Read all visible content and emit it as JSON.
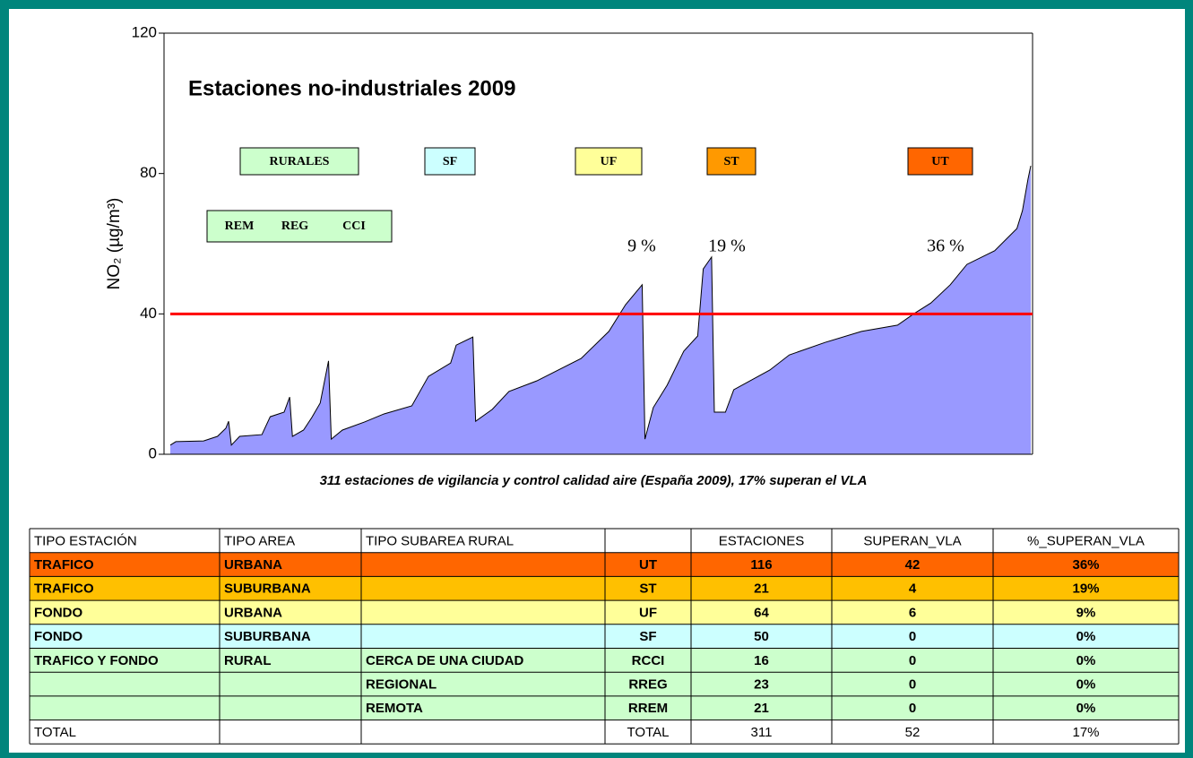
{
  "chart_data": {
    "type": "area",
    "title": "Estaciones no-industriales 2009",
    "y_label": "NO₂ (µg/m³)",
    "caption": "311 estaciones de vigilancia y control calidad aire (España 2009), 17% superan el VLA",
    "x": [
      1,
      3,
      13,
      18,
      21,
      22,
      23,
      26,
      34,
      37,
      42,
      44,
      45,
      49,
      52,
      55,
      58,
      59,
      63,
      71,
      78,
      88,
      94,
      102,
      104,
      110,
      111,
      117,
      123,
      133,
      149,
      159,
      165,
      171,
      172,
      175,
      180,
      186,
      191,
      193,
      196,
      197,
      201,
      204,
      217,
      224,
      237,
      250,
      263,
      269,
      275,
      282,
      288,
      298,
      306,
      308,
      310,
      311
    ],
    "values": [
      2.6,
      3.6,
      3.8,
      5.1,
      7.4,
      9.4,
      2.6,
      5.1,
      5.6,
      10.7,
      12.0,
      16.3,
      5.1,
      6.9,
      10.5,
      14.6,
      26.6,
      4.3,
      6.9,
      9.2,
      11.5,
      13.8,
      22.2,
      26.0,
      31.1,
      33.4,
      9.4,
      12.8,
      17.9,
      20.9,
      27.3,
      35.0,
      42.6,
      48.3,
      4.3,
      13.3,
      19.7,
      29.4,
      33.7,
      52.8,
      56.2,
      12.0,
      12.0,
      18.4,
      24.0,
      28.3,
      31.9,
      35.0,
      36.8,
      40.1,
      43.1,
      48.3,
      54.1,
      58.0,
      64.3,
      69.4,
      78.4,
      82.2
    ],
    "color": "#9999ff",
    "xlim": [
      1,
      311
    ],
    "ylim": [
      0,
      120
    ],
    "yticks": [
      0,
      40,
      80,
      120
    ],
    "threshold": 40,
    "threshold_color": "#ff0000",
    "boxes": [
      {
        "text": "RURALES",
        "color": "#ccffcc"
      },
      {
        "text": "SF",
        "color": "#ccffff"
      },
      {
        "text": "UF",
        "color": "#ffff99"
      },
      {
        "text": "ST",
        "color": "#ff9900"
      },
      {
        "text": "UT",
        "color": "#ff6600"
      }
    ],
    "rural_box": {
      "items": [
        "REM",
        "REG",
        "CCI"
      ],
      "color": "#ccffcc"
    },
    "annotations": [
      "9 %",
      "19 %",
      "36 %"
    ]
  },
  "table": {
    "header": [
      "TIPO ESTACIÓN",
      "TIPO AREA",
      "TIPO SUBAREA RURAL",
      "",
      "ESTACIONES",
      "SUPERAN_VLA",
      "%_SUPERAN_VLA"
    ],
    "rows": [
      [
        "TRAFICO",
        "URBANA",
        "",
        "UT",
        "116",
        "42",
        "36%"
      ],
      [
        "TRAFICO",
        "SUBURBANA",
        "",
        "ST",
        "21",
        "4",
        "19%"
      ],
      [
        "FONDO",
        "URBANA",
        "",
        "UF",
        "64",
        "6",
        "9%"
      ],
      [
        "FONDO",
        "SUBURBANA",
        "",
        "SF",
        "50",
        "0",
        "0%"
      ],
      [
        "TRAFICO Y FONDO",
        "RURAL",
        "CERCA DE UNA CIUDAD",
        "RCCI",
        "16",
        "0",
        "0%"
      ],
      [
        "",
        "",
        "REGIONAL",
        "RREG",
        "23",
        "0",
        "0%"
      ],
      [
        "",
        "",
        "REMOTA",
        "RREM",
        "21",
        "0",
        "0%"
      ],
      [
        "TOTAL",
        "",
        "",
        "TOTAL",
        "311",
        "52",
        "17%"
      ]
    ],
    "row_colors": [
      "#ff6600",
      "#ffc000",
      "#ffff99",
      "#ccffff",
      "#ccffcc",
      "#ccffcc",
      "#ccffcc",
      "#ffffff"
    ]
  }
}
